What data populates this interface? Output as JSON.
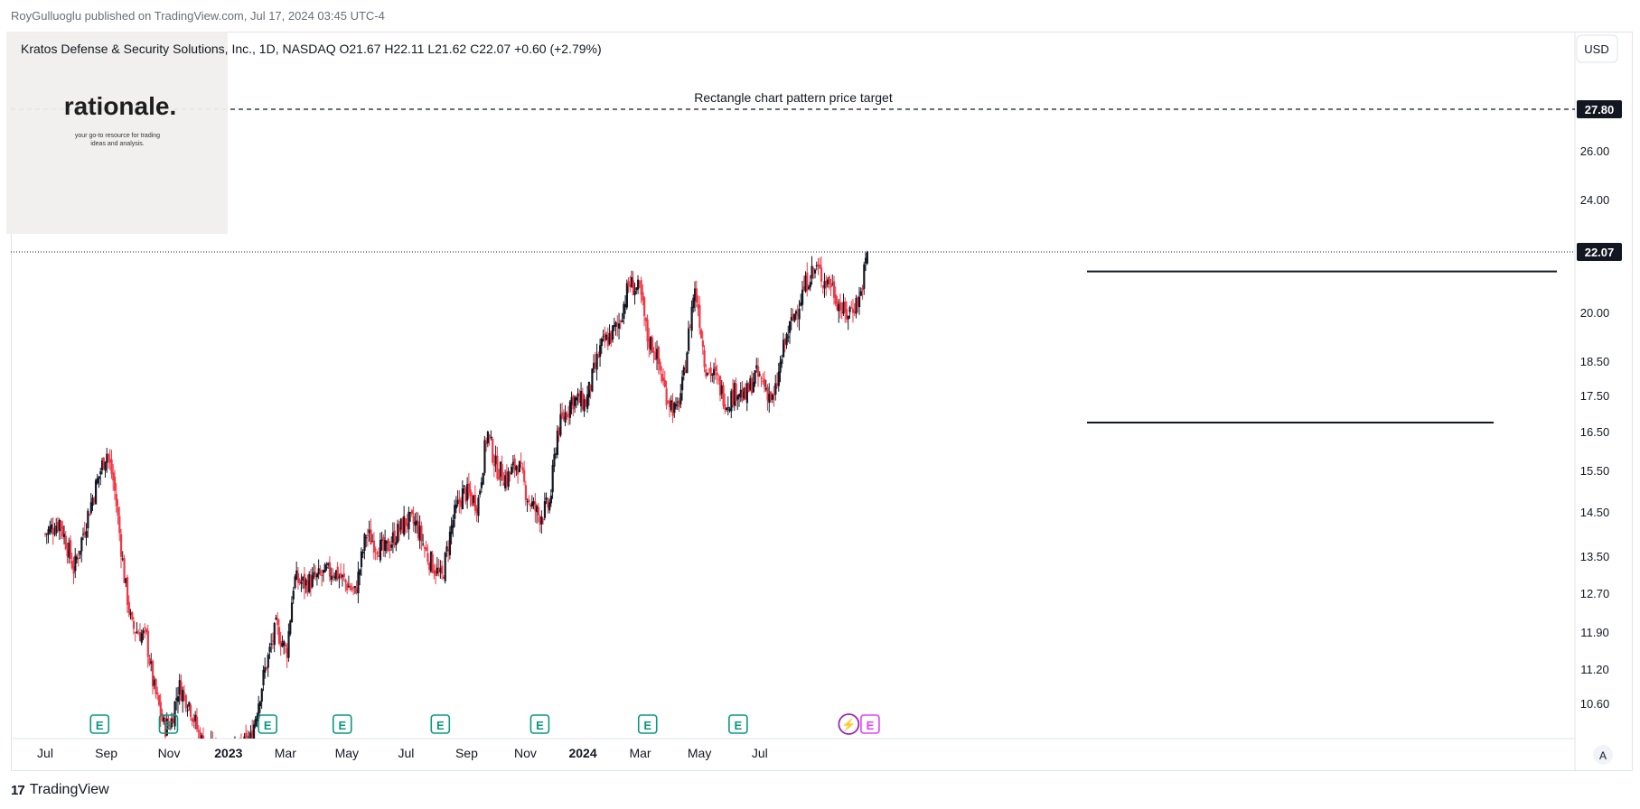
{
  "header": {
    "publisher": "RoyGulluoglu published on TradingView.com, Jul 17, 2024 03:45 UTC-4"
  },
  "legend": {
    "symbol": "Kratos Defense & Security Solutions, Inc., 1D, NASDAQ",
    "o_label": "O",
    "o": "21.67",
    "h_label": "H",
    "h": "22.11",
    "l_label": "L",
    "l": "21.62",
    "c_label": "C",
    "c": "22.07",
    "change": "+0.60 (+2.79%)"
  },
  "currency": "USD",
  "auto_scale": "A",
  "logo": {
    "name": "rationale.",
    "tagline1": "your go-to resource for trading",
    "tagline2": "ideas and analysis."
  },
  "footer": {
    "brand": "TradingView"
  },
  "annotation": {
    "text": "Rectangle chart pattern price target",
    "price": 27.8,
    "price_label": "27.80"
  },
  "last_price": {
    "price": 22.07,
    "label": "22.07"
  },
  "colors": {
    "up": "#131722",
    "down": "#f23645",
    "earnings": "#089981",
    "marker_tag": "#131722"
  },
  "chart_data": {
    "type": "candlestick",
    "symbol": "KTOS",
    "interval": "1D",
    "price_axis_ticks": [
      {
        "v": 26.0,
        "label": "26.00"
      },
      {
        "v": 24.0,
        "label": "24.00"
      },
      {
        "v": 20.0,
        "label": "20.00"
      },
      {
        "v": 18.5,
        "label": "18.50"
      },
      {
        "v": 17.5,
        "label": "17.50"
      },
      {
        "v": 16.5,
        "label": "16.50"
      },
      {
        "v": 15.5,
        "label": "15.50"
      },
      {
        "v": 14.5,
        "label": "14.50"
      },
      {
        "v": 13.5,
        "label": "13.50"
      },
      {
        "v": 12.7,
        "label": "12.70"
      },
      {
        "v": 11.9,
        "label": "11.90"
      },
      {
        "v": 11.2,
        "label": "11.20"
      },
      {
        "v": 10.6,
        "label": "10.60"
      }
    ],
    "time_axis": [
      {
        "label": "Jul",
        "t": 0.0,
        "bold": false
      },
      {
        "label": "Sep",
        "t": 0.0847,
        "bold": false
      },
      {
        "label": "Nov",
        "t": 0.1717,
        "bold": false
      },
      {
        "label": "2023",
        "t": 0.2542,
        "bold": true
      },
      {
        "label": "Mar",
        "t": 0.3331,
        "bold": false
      },
      {
        "label": "May",
        "t": 0.4183,
        "bold": false
      },
      {
        "label": "Jul",
        "t": 0.5005,
        "bold": false
      },
      {
        "label": "Sep",
        "t": 0.5845,
        "bold": false
      },
      {
        "label": "Nov",
        "t": 0.666,
        "bold": false
      },
      {
        "label": "2024",
        "t": 0.7457,
        "bold": true
      },
      {
        "label": "Mar",
        "t": 0.8252,
        "bold": false
      },
      {
        "label": "May",
        "t": 0.9074,
        "bold": false
      },
      {
        "label": "Jul",
        "t": 0.991,
        "bold": false
      }
    ],
    "price_path": [
      [
        0.0,
        14.0
      ],
      [
        0.02,
        14.3
      ],
      [
        0.04,
        13.2
      ],
      [
        0.06,
        14.5
      ],
      [
        0.085,
        16.0
      ],
      [
        0.095,
        15.2
      ],
      [
        0.11,
        13.0
      ],
      [
        0.12,
        12.0
      ],
      [
        0.14,
        11.8
      ],
      [
        0.15,
        10.9
      ],
      [
        0.165,
        10.2
      ],
      [
        0.175,
        10.3
      ],
      [
        0.185,
        10.9
      ],
      [
        0.2,
        10.6
      ],
      [
        0.215,
        10.0
      ],
      [
        0.25,
        9.6
      ],
      [
        0.285,
        10.0
      ],
      [
        0.305,
        11.2
      ],
      [
        0.32,
        12.0
      ],
      [
        0.335,
        11.5
      ],
      [
        0.345,
        13.0
      ],
      [
        0.36,
        12.9
      ],
      [
        0.4,
        13.2
      ],
      [
        0.43,
        12.7
      ],
      [
        0.445,
        14.0
      ],
      [
        0.47,
        13.6
      ],
      [
        0.5,
        14.3
      ],
      [
        0.515,
        14.2
      ],
      [
        0.53,
        13.5
      ],
      [
        0.55,
        13.0
      ],
      [
        0.565,
        14.3
      ],
      [
        0.58,
        15.0
      ],
      [
        0.6,
        14.7
      ],
      [
        0.613,
        16.5
      ],
      [
        0.625,
        15.6
      ],
      [
        0.64,
        15.3
      ],
      [
        0.655,
        15.7
      ],
      [
        0.67,
        14.8
      ],
      [
        0.685,
        14.4
      ],
      [
        0.7,
        14.7
      ],
      [
        0.71,
        16.5
      ],
      [
        0.73,
        17.4
      ],
      [
        0.75,
        17.3
      ],
      [
        0.77,
        18.9
      ],
      [
        0.795,
        19.6
      ],
      [
        0.81,
        21.0
      ],
      [
        0.825,
        20.7
      ],
      [
        0.835,
        19.2
      ],
      [
        0.845,
        18.9
      ],
      [
        0.86,
        17.6
      ],
      [
        0.875,
        17.0
      ],
      [
        0.885,
        17.9
      ],
      [
        0.9,
        20.8
      ],
      [
        0.905,
        20.3
      ],
      [
        0.915,
        18.4
      ],
      [
        0.93,
        18.0
      ],
      [
        0.945,
        17.3
      ],
      [
        0.96,
        17.7
      ],
      [
        0.97,
        17.4
      ],
      [
        0.985,
        18.1
      ],
      [
        0.995,
        17.9
      ],
      [
        1.01,
        17.3
      ],
      [
        1.025,
        19.0
      ],
      [
        1.04,
        20.0
      ],
      [
        1.06,
        21.3
      ],
      [
        1.07,
        21.5
      ],
      [
        1.08,
        21.1
      ],
      [
        1.09,
        21.0
      ],
      [
        1.1,
        20.3
      ],
      [
        1.11,
        19.9
      ],
      [
        1.12,
        20.2
      ],
      [
        1.13,
        20.5
      ],
      [
        1.14,
        22.07
      ]
    ],
    "earnings_markers_t": [
      0.0755,
      0.171,
      0.3085,
      0.412,
      0.548,
      0.686,
      0.8355,
      0.961
    ],
    "upcoming_markers_t": [
      1.1145,
      1.144
    ],
    "rectangle_top": 21.4,
    "rectangle_bottom": 16.75,
    "target": 27.8
  }
}
